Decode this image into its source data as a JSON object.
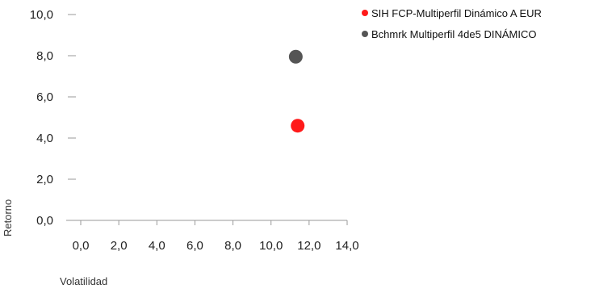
{
  "chart_data": {
    "type": "scatter",
    "xlabel": "Volatilidad",
    "ylabel": "Retorno",
    "xlim": [
      0,
      14
    ],
    "ylim": [
      0,
      10
    ],
    "x_ticks": [
      "0,0",
      "2,0",
      "4,0",
      "6,0",
      "8,0",
      "10,0",
      "12,0",
      "14,0"
    ],
    "y_ticks": [
      "0,0",
      "2,0",
      "4,0",
      "6,0",
      "8,0",
      "10,0"
    ],
    "grid": false,
    "legend_position": "top-right",
    "series": [
      {
        "name": "SIH FCP-Multiperfil Dinámico A EUR",
        "color": "#ff1a1a",
        "points": [
          {
            "x": 11.4,
            "y": 4.6
          }
        ]
      },
      {
        "name": "Bchmrk Multiperfil 4de5 DINÁMICO",
        "color": "#555555",
        "points": [
          {
            "x": 11.3,
            "y": 7.95
          }
        ]
      }
    ]
  }
}
